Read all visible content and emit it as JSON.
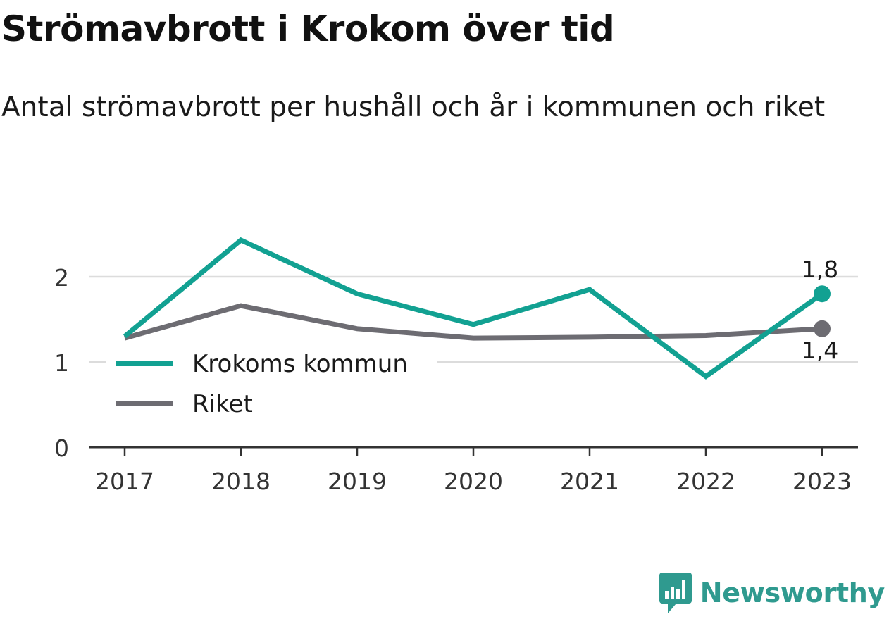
{
  "header": {
    "title": "Strömavbrott i Krokom över tid",
    "subtitle": "Antal strömavbrott per hushåll och år i kommunen och riket"
  },
  "brand": {
    "name": "Newsworthy",
    "icon": "bar-chart-icon",
    "color": "#2f9a8f"
  },
  "chart_data": {
    "type": "line",
    "x": [
      "2017",
      "2018",
      "2019",
      "2020",
      "2021",
      "2022",
      "2023"
    ],
    "series": [
      {
        "name": "Krokoms kommun",
        "color": "#12a192",
        "values": [
          1.3,
          2.43,
          1.8,
          1.44,
          1.85,
          0.83,
          1.8
        ],
        "end_label": "1,8"
      },
      {
        "name": "Riket",
        "color": "#6d6c72",
        "values": [
          1.28,
          1.66,
          1.39,
          1.28,
          1.29,
          1.31,
          1.39
        ],
        "end_label": "1,4"
      }
    ],
    "yticks": [
      {
        "value": 0,
        "label": "0"
      },
      {
        "value": 1,
        "label": "1"
      },
      {
        "value": 2,
        "label": "2"
      }
    ],
    "ylim": [
      0,
      2.5
    ],
    "grid": true,
    "legend": "inside-left"
  }
}
